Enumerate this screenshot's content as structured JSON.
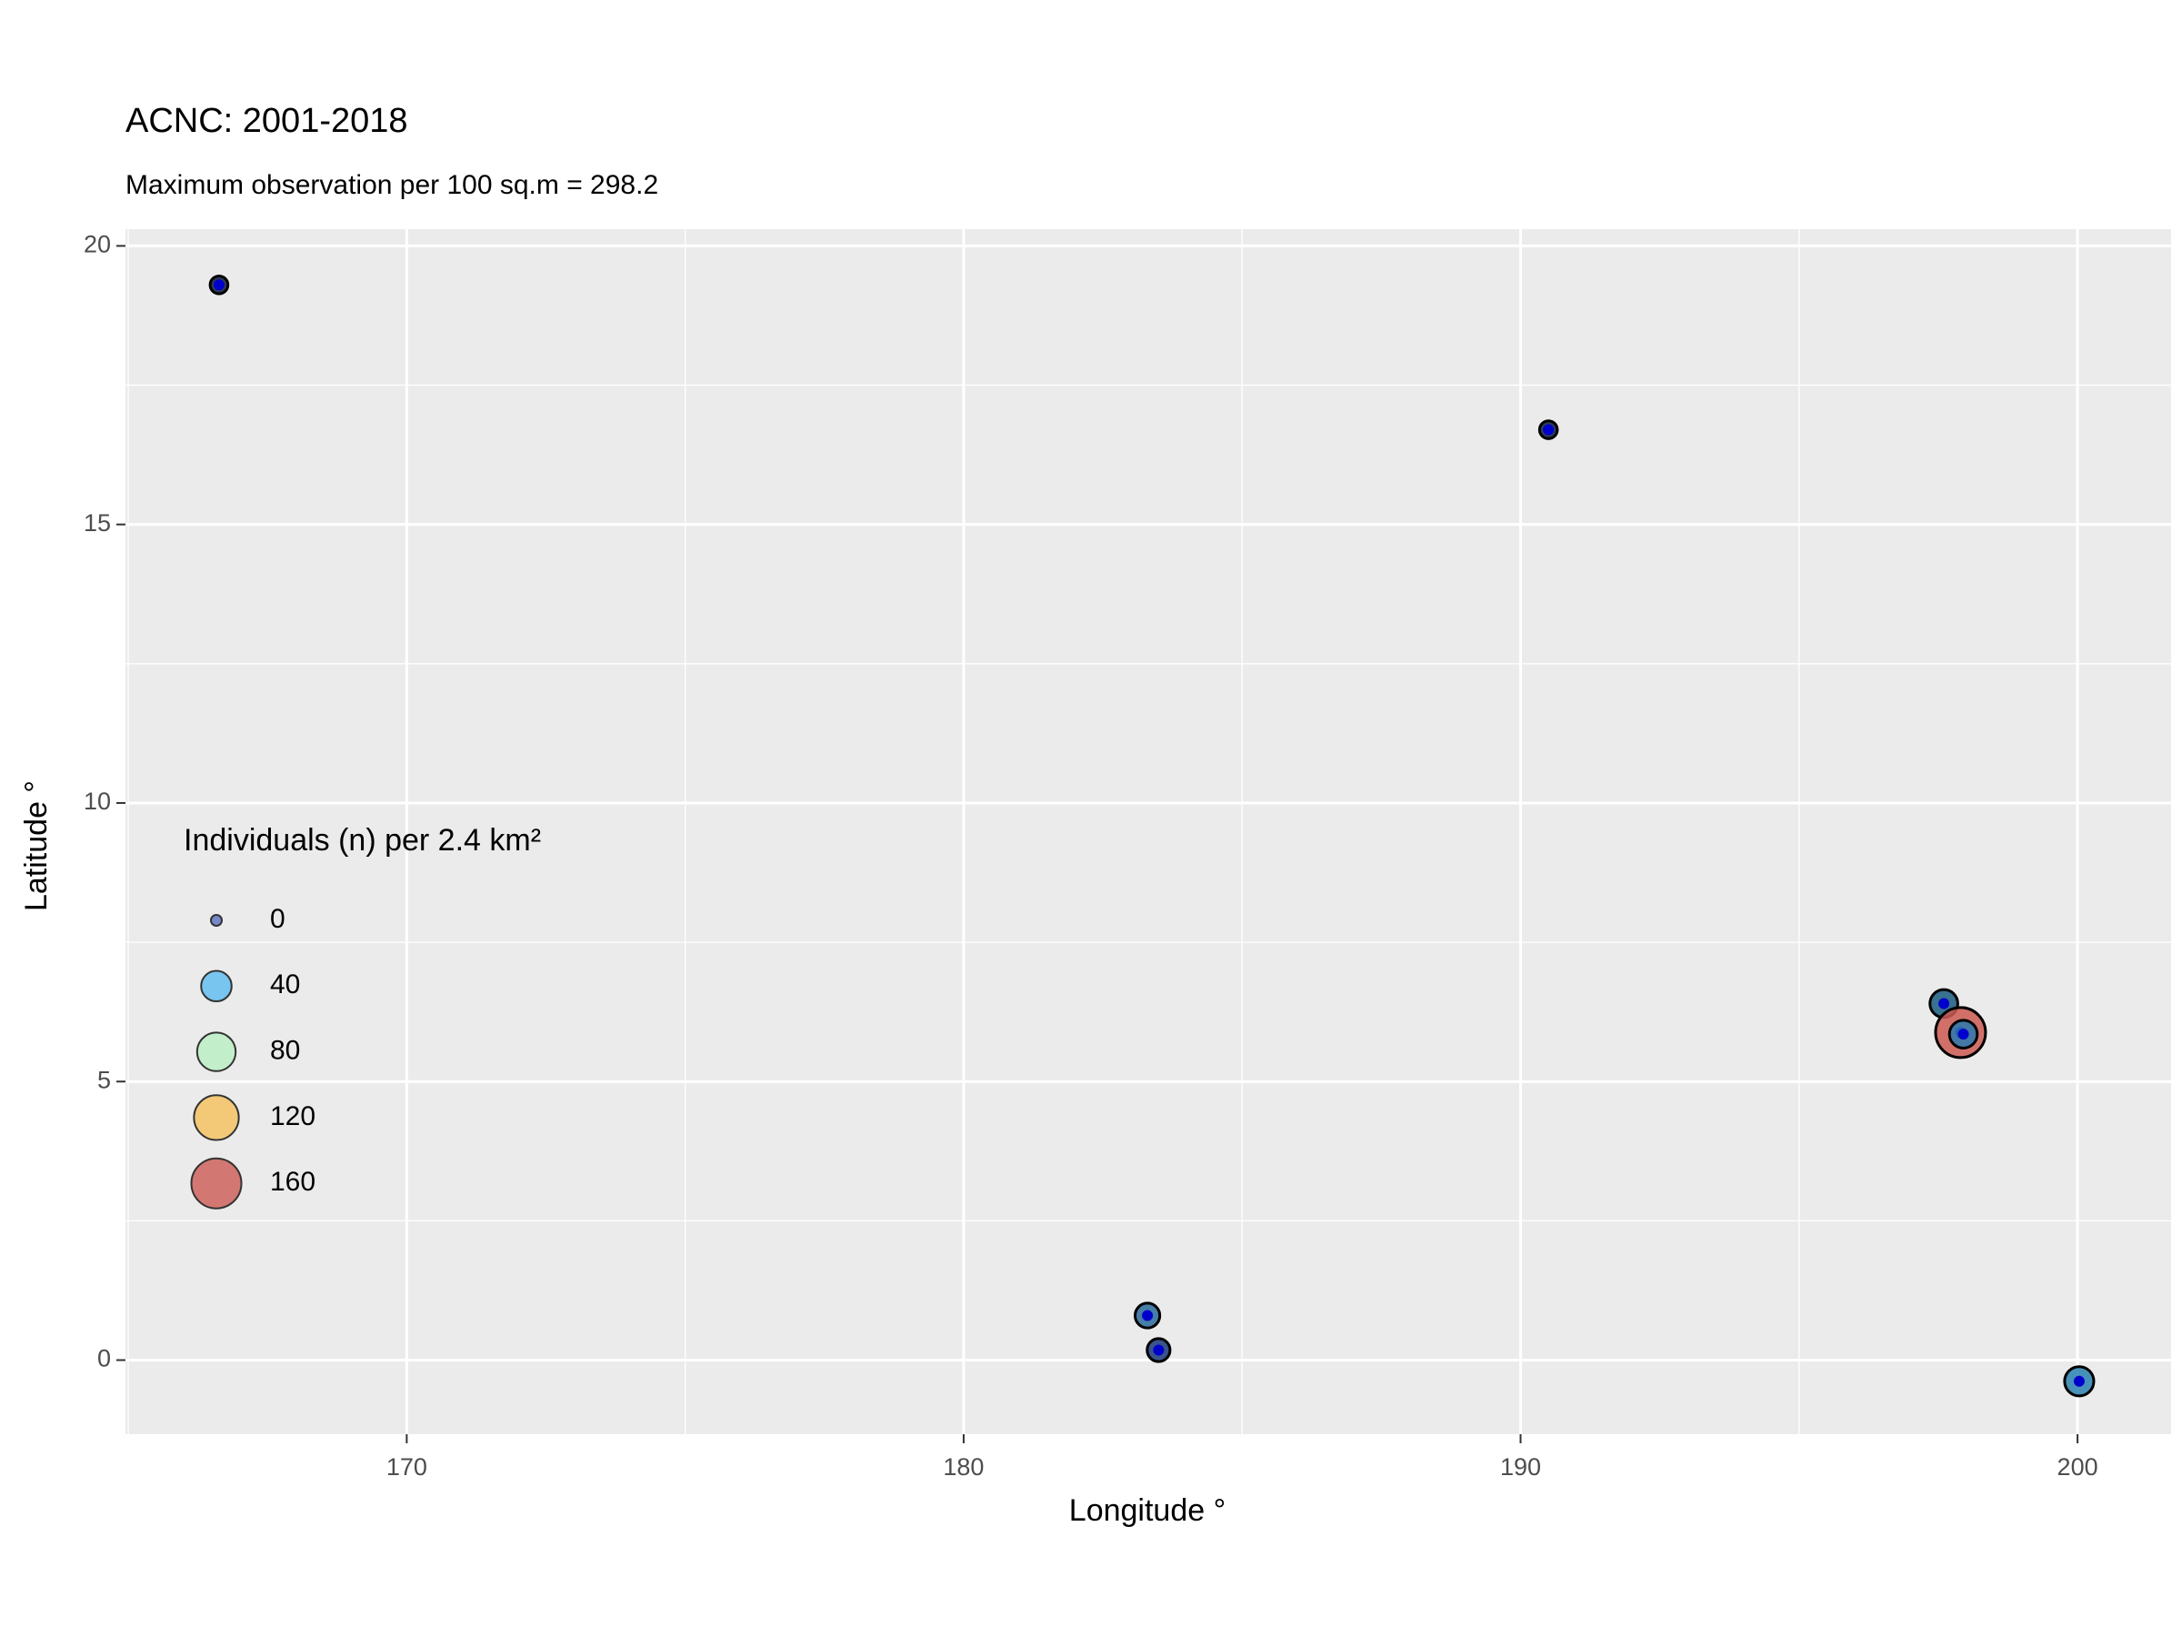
{
  "chart_data": {
    "type": "scatter",
    "title": "ACNC: 2001-2018",
    "subtitle": "Maximum observation per 100 sq.m = 298.2",
    "x_label": "Longitude °",
    "y_label": "Latitude °",
    "xlim": [
      164.95,
      201.68
    ],
    "ylim": [
      -1.33,
      20.3
    ],
    "xticks": [
      170,
      180,
      190,
      200
    ],
    "yticks": [
      0,
      5,
      10,
      15,
      20
    ],
    "x_minor": [
      165,
      175,
      185,
      195
    ],
    "y_minor": [
      2.5,
      7.5,
      12.5,
      17.5
    ],
    "grid": true,
    "series": [
      {
        "name": "Individuals",
        "x": [
          166.63,
          190.5,
          197.6,
          197.9,
          197.95,
          183.3,
          183.5,
          200.03
        ],
        "values": [
          19.3,
          16.7,
          6.4,
          5.88,
          5.85,
          0.8,
          0.18,
          -0.38
        ],
        "sizes": [
          5,
          5,
          30,
          160,
          30,
          20,
          15,
          35
        ],
        "colors": [
          "#0d1b3a",
          "#0d1b3a",
          "#1a5c80",
          "#cc5a52",
          "#2a78b0",
          "#2a6a9a",
          "#1a3a7a",
          "#2a80b0"
        ]
      }
    ],
    "legend": {
      "title": "Individuals (n) per 2.4 km²",
      "position": "left",
      "values": [
        0,
        40,
        80,
        120,
        160
      ],
      "colors": [
        "#5a6fc0",
        "#5bbcf0",
        "#b8f0c0",
        "#f5c15a",
        "#cc5a52"
      ]
    }
  }
}
